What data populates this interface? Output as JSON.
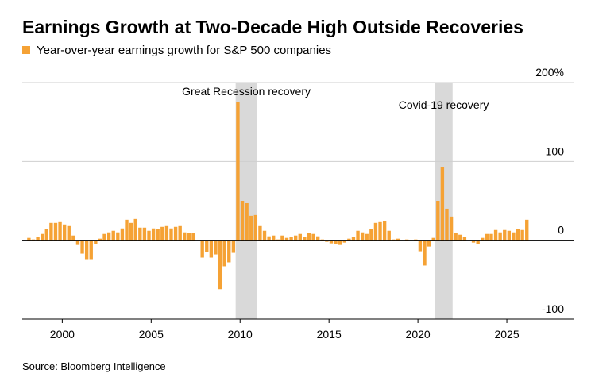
{
  "chart_data": {
    "type": "bar",
    "title": "Earnings Growth at Two-Decade High Outside Recoveries",
    "source": "Source: Bloomberg Intelligence",
    "series": [
      {
        "name": "Year-over-year earnings growth for S&P 500 companies",
        "color": "#f5a235",
        "x": [
          1998.125,
          1998.375,
          1998.625,
          1998.875,
          1999.125,
          1999.375,
          1999.625,
          1999.875,
          2000.125,
          2000.375,
          2000.625,
          2000.875,
          2001.125,
          2001.375,
          2001.625,
          2001.875,
          2002.125,
          2002.375,
          2002.625,
          2002.875,
          2003.125,
          2003.375,
          2003.625,
          2003.875,
          2004.125,
          2004.375,
          2004.625,
          2004.875,
          2005.125,
          2005.375,
          2005.625,
          2005.875,
          2006.125,
          2006.375,
          2006.625,
          2006.875,
          2007.125,
          2007.375,
          2007.625,
          2007.875,
          2008.125,
          2008.375,
          2008.625,
          2008.875,
          2009.125,
          2009.375,
          2009.625,
          2009.875,
          2010.125,
          2010.375,
          2010.625,
          2010.875,
          2011.125,
          2011.375,
          2011.625,
          2011.875,
          2012.125,
          2012.375,
          2012.625,
          2012.875,
          2013.125,
          2013.375,
          2013.625,
          2013.875,
          2014.125,
          2014.375,
          2014.625,
          2014.875,
          2015.125,
          2015.375,
          2015.625,
          2015.875,
          2016.125,
          2016.375,
          2016.625,
          2016.875,
          2017.125,
          2017.375,
          2017.625,
          2017.875,
          2018.125,
          2018.375,
          2018.625,
          2018.875,
          2019.125,
          2019.375,
          2019.625,
          2019.875,
          2020.125,
          2020.375,
          2020.625,
          2020.875,
          2021.125,
          2021.375,
          2021.625,
          2021.875,
          2022.125,
          2022.375,
          2022.625,
          2022.875,
          2023.125,
          2023.375,
          2023.625,
          2023.875,
          2024.125,
          2024.375,
          2024.625,
          2024.875,
          2025.125,
          2025.375,
          2025.625,
          2025.875,
          2026.125
        ],
        "values": [
          3,
          1,
          4,
          8,
          14,
          22,
          22,
          23,
          20,
          18,
          6,
          -6,
          -17,
          -24,
          -24,
          -5,
          2,
          8,
          10,
          12,
          10,
          15,
          26,
          22,
          27,
          16,
          16,
          12,
          15,
          14,
          17,
          18,
          15,
          17,
          18,
          10,
          9,
          9,
          0,
          -22,
          -15,
          -22,
          -18,
          -62,
          -33,
          -28,
          -16,
          175,
          50,
          47,
          31,
          32,
          18,
          12,
          5,
          6,
          1,
          6,
          3,
          4,
          6,
          8,
          4,
          9,
          8,
          5,
          1,
          -2,
          -4,
          -5,
          -6,
          -3,
          2,
          4,
          12,
          10,
          8,
          14,
          22,
          23,
          24,
          12,
          1,
          2,
          0,
          1,
          0,
          1,
          -14,
          -32,
          -8,
          3,
          50,
          93,
          40,
          30,
          9,
          7,
          4,
          -1,
          -3,
          -5,
          3,
          8,
          8,
          13,
          10,
          13,
          12,
          10,
          14,
          13,
          26
        ]
      }
    ],
    "shaded_regions": [
      {
        "label": "Great Recession recovery",
        "start": 2009.75,
        "end": 2010.95
      },
      {
        "label": "Covid-19 recovery",
        "start": 2020.95,
        "end": 2021.95
      }
    ],
    "shade_color": "#d9d9d9",
    "xlim": [
      1997.75,
      2028.75
    ],
    "xticks": [
      2000,
      2005,
      2010,
      2015,
      2020,
      2025
    ],
    "ylim": [
      -100,
      200
    ],
    "yticks": [
      -100,
      0,
      100,
      {
        "value": 200,
        "label": "200%"
      }
    ],
    "grid": true
  }
}
